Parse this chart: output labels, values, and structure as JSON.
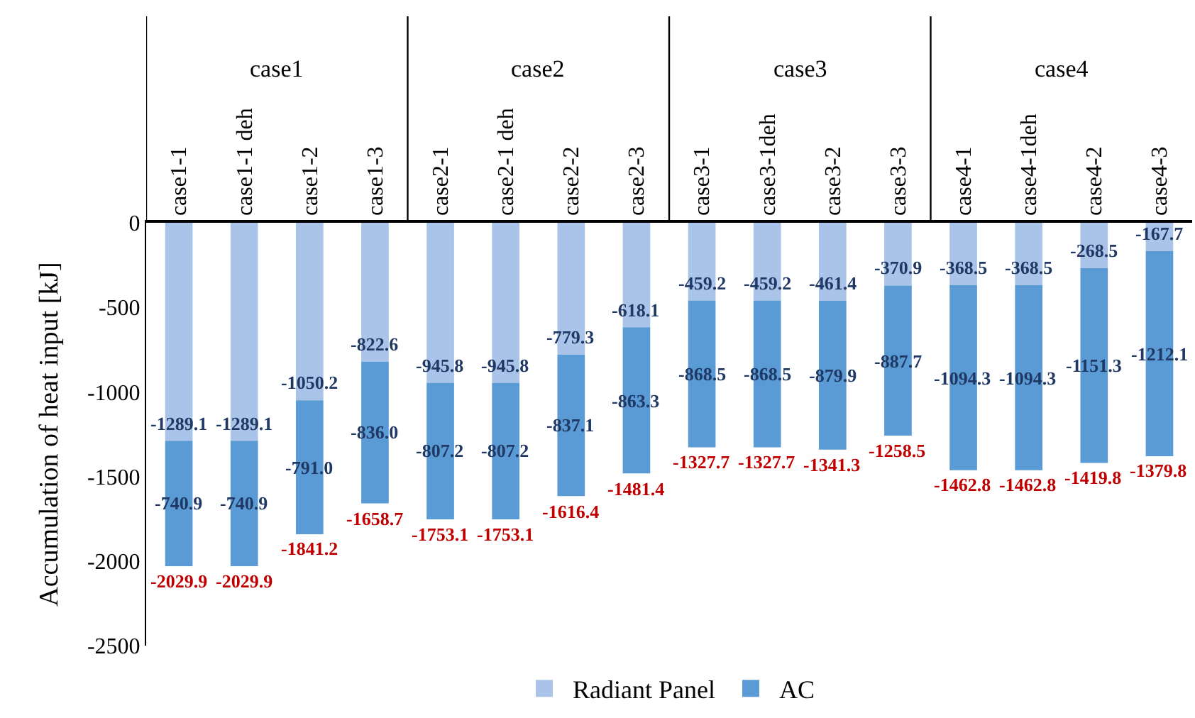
{
  "chart_data": {
    "type": "bar",
    "stacked": true,
    "ylabel": "Accumulation of heat input [kJ]",
    "categories": [
      "case1-1",
      "case1-1 deh",
      "case1-2",
      "case1-3",
      "case2-1",
      "case2-1 deh",
      "case2-2",
      "case2-3",
      "case3-1",
      "case3-1deh",
      "case3-2",
      "case3-3",
      "case4-1",
      "case4-1deh",
      "case4-2",
      "case4-3"
    ],
    "annotations": [
      "case1",
      "case2",
      "case3",
      "case4"
    ],
    "series": [
      {
        "name": "Radiant Panel",
        "color": "#a9c4e8",
        "values": [
          -1289.1,
          -1289.1,
          -1050.2,
          -822.6,
          -945.8,
          -945.8,
          -779.3,
          -618.1,
          -459.2,
          -459.2,
          -461.4,
          -370.9,
          -368.5,
          -368.5,
          -268.5,
          -167.7
        ],
        "value_labels": [
          "-1289.1",
          "-1289.1",
          "-1050.2",
          "-822.6",
          "-945.8",
          "-945.8",
          "-779.3",
          "-618.1",
          "-459.2",
          "-459.2",
          "-461.4",
          "-370.9",
          "-368.5",
          "-368.5",
          "-268.5",
          "-167.7"
        ]
      },
      {
        "name": "AC",
        "color": "#5b9bd5",
        "values": [
          -740.9,
          -740.9,
          -791.0,
          -836.0,
          -807.2,
          -807.2,
          -837.1,
          -863.3,
          -868.5,
          -868.5,
          -879.9,
          -887.7,
          -1094.3,
          -1094.3,
          -1151.3,
          -1212.1
        ],
        "value_labels": [
          "-740.9",
          "-740.9",
          "-791.0",
          "-836.0",
          "-807.2",
          "-807.2",
          "-837.1",
          "-863.3",
          "-868.5",
          "-868.5",
          "-879.9",
          "-887.7",
          "-1094.3",
          "-1094.3",
          "-1151.3",
          "-1212.1"
        ]
      }
    ],
    "totals": [
      "-2029.9",
      "-2029.9",
      "-1841.2",
      "-1658.7",
      "-1753.1",
      "-1753.1",
      "-1616.4",
      "-1481.4",
      "-1327.7",
      "-1327.7",
      "-1341.3",
      "-1258.5",
      "-1462.8",
      "-1462.8",
      "-1419.8",
      "-1379.8"
    ],
    "ylim": [
      -2500,
      0
    ],
    "yticks": [
      -2500,
      -2000,
      -1500,
      -1000,
      -500,
      0
    ],
    "legend": "bottom"
  }
}
